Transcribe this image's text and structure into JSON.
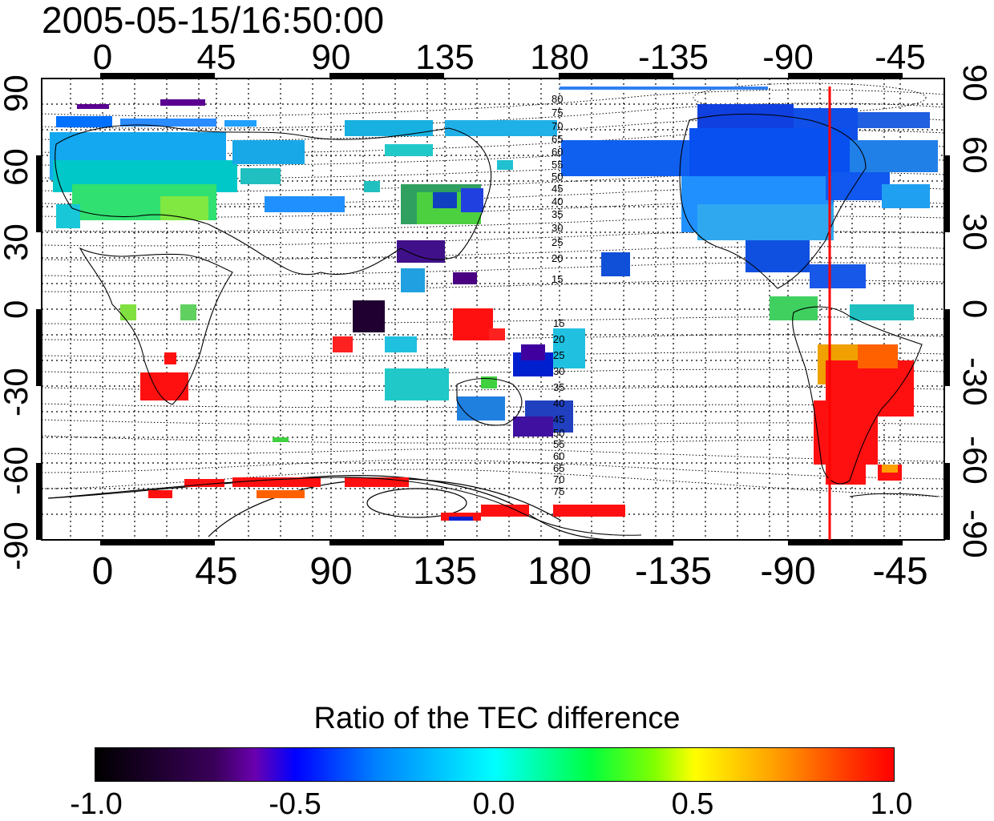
{
  "timestamp": "2005-05-15/16:50:00",
  "map": {
    "top_longitude_labels": [
      "0",
      "45",
      "90",
      "135",
      "180",
      "-135",
      "-90",
      "-45"
    ],
    "bottom_longitude_labels": [
      "0",
      "45",
      "90",
      "135",
      "180",
      "-135",
      "-90",
      "-45"
    ],
    "left_latitude_labels": [
      "90",
      "60",
      "30",
      "0",
      "-30",
      "-60",
      "-90"
    ],
    "right_latitude_labels": [
      "90",
      "60",
      "30",
      "0",
      "-30",
      "-60",
      "-90"
    ],
    "contour_labels_north": [
      "80",
      "75",
      "70",
      "65",
      "60",
      "55",
      "50",
      "45",
      "40",
      "35",
      "30",
      "25",
      "20",
      "15"
    ],
    "contour_labels_south": [
      "15",
      "20",
      "25",
      "30",
      "35",
      "40",
      "45",
      "50",
      "55",
      "60",
      "65",
      "70",
      "75"
    ],
    "marker_line_color": "#ff0000",
    "marker_longitude": -70
  },
  "colorbar": {
    "title": "Ratio of the TEC difference",
    "tick_labels": [
      "-1.0",
      "-0.5",
      "0.0",
      "0.5",
      "1.0"
    ],
    "range": [
      -1.0,
      1.0
    ],
    "colors": [
      "#000000",
      "#6a00b0",
      "#0000ff",
      "#00ffff",
      "#00ff40",
      "#ffff00",
      "#ff0000"
    ]
  }
}
